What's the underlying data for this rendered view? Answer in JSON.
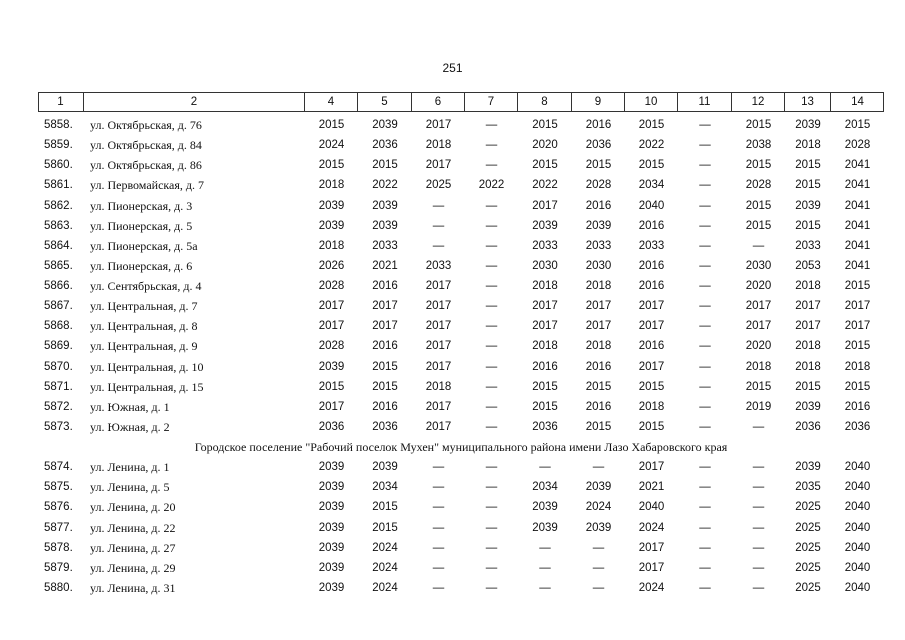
{
  "page_number": "251",
  "table": {
    "header": [
      "1",
      "2",
      "4",
      "5",
      "6",
      "7",
      "8",
      "9",
      "10",
      "11",
      "12",
      "13",
      "14"
    ],
    "body": [
      [
        "5858.",
        "ул. Октябрьская, д. 76",
        "2015",
        "2039",
        "2017",
        "—",
        "2015",
        "2016",
        "2015",
        "—",
        "2015",
        "2039",
        "2015"
      ],
      [
        "5859.",
        "ул. Октябрьская, д. 84",
        "2024",
        "2036",
        "2018",
        "—",
        "2020",
        "2036",
        "2022",
        "—",
        "2038",
        "2018",
        "2028"
      ],
      [
        "5860.",
        "ул. Октябрьская, д. 86",
        "2015",
        "2015",
        "2017",
        "—",
        "2015",
        "2015",
        "2015",
        "—",
        "2015",
        "2015",
        "2041"
      ],
      [
        "5861.",
        "ул. Первомайская, д. 7",
        "2018",
        "2022",
        "2025",
        "2022",
        "2022",
        "2028",
        "2034",
        "—",
        "2028",
        "2015",
        "2041"
      ],
      [
        "5862.",
        "ул. Пионерская, д. 3",
        "2039",
        "2039",
        "—",
        "—",
        "2017",
        "2016",
        "2040",
        "—",
        "2015",
        "2039",
        "2041"
      ],
      [
        "5863.",
        "ул. Пионерская, д. 5",
        "2039",
        "2039",
        "—",
        "—",
        "2039",
        "2039",
        "2016",
        "—",
        "2015",
        "2015",
        "2041"
      ],
      [
        "5864.",
        "ул. Пионерская, д. 5а",
        "2018",
        "2033",
        "—",
        "—",
        "2033",
        "2033",
        "2033",
        "—",
        "—",
        "2033",
        "2041"
      ],
      [
        "5865.",
        "ул. Пионерская, д. 6",
        "2026",
        "2021",
        "2033",
        "—",
        "2030",
        "2030",
        "2016",
        "—",
        "2030",
        "2053",
        "2041"
      ],
      [
        "5866.",
        "ул. Сентябрьская, д. 4",
        "2028",
        "2016",
        "2017",
        "—",
        "2018",
        "2018",
        "2016",
        "—",
        "2020",
        "2018",
        "2015"
      ],
      [
        "5867.",
        "ул. Центральная, д. 7",
        "2017",
        "2017",
        "2017",
        "—",
        "2017",
        "2017",
        "2017",
        "—",
        "2017",
        "2017",
        "2017"
      ],
      [
        "5868.",
        "ул. Центральная, д. 8",
        "2017",
        "2017",
        "2017",
        "—",
        "2017",
        "2017",
        "2017",
        "—",
        "2017",
        "2017",
        "2017"
      ],
      [
        "5869.",
        "ул. Центральная, д. 9",
        "2028",
        "2016",
        "2017",
        "—",
        "2018",
        "2018",
        "2016",
        "—",
        "2020",
        "2018",
        "2015"
      ],
      [
        "5870.",
        "ул. Центральная, д. 10",
        "2039",
        "2015",
        "2017",
        "—",
        "2016",
        "2016",
        "2017",
        "—",
        "2018",
        "2018",
        "2018"
      ],
      [
        "5871.",
        "ул. Центральная, д. 15",
        "2015",
        "2015",
        "2018",
        "—",
        "2015",
        "2015",
        "2015",
        "—",
        "2015",
        "2015",
        "2015"
      ],
      [
        "5872.",
        "ул. Южная, д. 1",
        "2017",
        "2016",
        "2017",
        "—",
        "2015",
        "2016",
        "2018",
        "—",
        "2019",
        "2039",
        "2016"
      ],
      [
        "5873.",
        "ул. Южная, д. 2",
        "2036",
        "2036",
        "2017",
        "—",
        "2036",
        "2015",
        "2015",
        "—",
        "—",
        "2036",
        "2036"
      ],
      {
        "heading": "Городское поселение \"Рабочий поселок Мухен\" муниципального района имени Лазо Хабаровского края"
      },
      [
        "5874.",
        "ул. Ленина, д. 1",
        "2039",
        "2039",
        "—",
        "—",
        "—",
        "—",
        "2017",
        "—",
        "—",
        "2039",
        "2040"
      ],
      [
        "5875.",
        "ул. Ленина, д. 5",
        "2039",
        "2034",
        "—",
        "—",
        "2034",
        "2039",
        "2021",
        "—",
        "—",
        "2035",
        "2040"
      ],
      [
        "5876.",
        "ул. Ленина, д. 20",
        "2039",
        "2015",
        "—",
        "—",
        "2039",
        "2024",
        "2040",
        "—",
        "—",
        "2025",
        "2040"
      ],
      [
        "5877.",
        "ул. Ленина, д. 22",
        "2039",
        "2015",
        "—",
        "—",
        "2039",
        "2039",
        "2024",
        "—",
        "—",
        "2025",
        "2040"
      ],
      [
        "5878.",
        "ул. Ленина, д. 27",
        "2039",
        "2024",
        "—",
        "—",
        "—",
        "—",
        "2017",
        "—",
        "—",
        "2025",
        "2040"
      ],
      [
        "5879.",
        "ул. Ленина, д. 29",
        "2039",
        "2024",
        "—",
        "—",
        "—",
        "—",
        "2017",
        "—",
        "—",
        "2025",
        "2040"
      ],
      [
        "5880.",
        "ул. Ленина, д. 31",
        "2039",
        "2024",
        "—",
        "—",
        "—",
        "—",
        "2024",
        "—",
        "—",
        "2025",
        "2040"
      ]
    ]
  }
}
